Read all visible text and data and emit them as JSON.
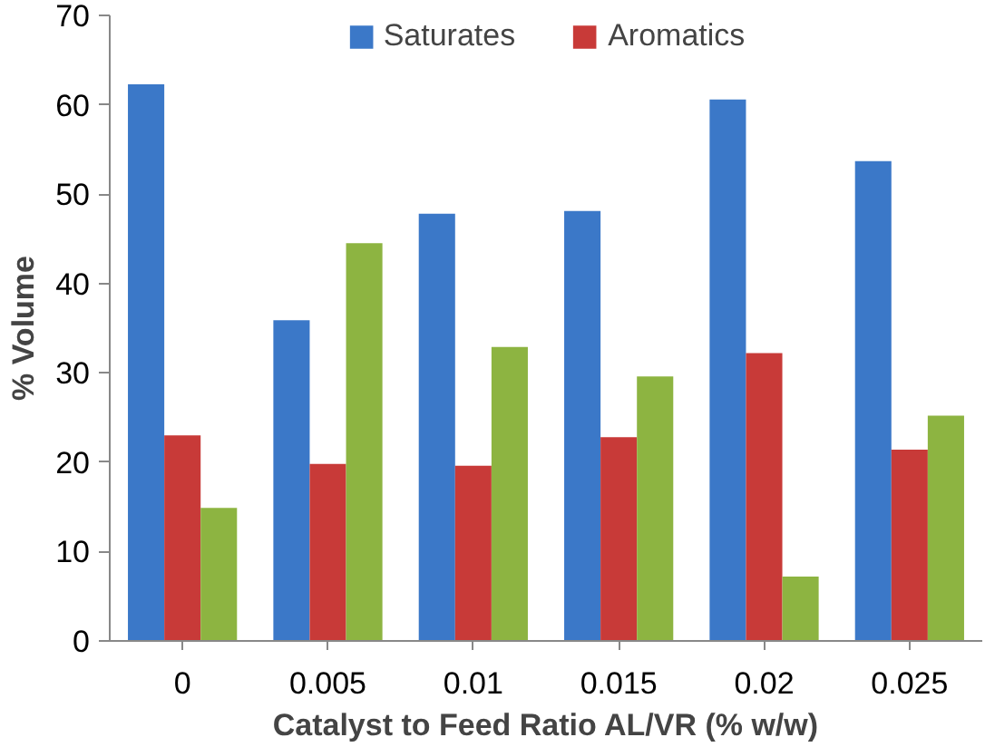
{
  "chart_data": {
    "type": "bar",
    "xlabel": "Catalyst to Feed Ratio AL/VR (% w/w)",
    "ylabel": "% Volume",
    "categories": [
      "0",
      "0.005",
      "0.01",
      "0.015",
      "0.02",
      "0.025"
    ],
    "series": [
      {
        "name": "Saturates",
        "color": "#3b78c8",
        "values": [
          62.3,
          35.9,
          47.8,
          48.1,
          60.6,
          53.7
        ]
      },
      {
        "name": "Aromatics",
        "color": "#c83a38",
        "values": [
          23.0,
          19.8,
          19.6,
          22.8,
          32.2,
          21.4
        ]
      },
      {
        "color": "#8db441",
        "values": [
          14.9,
          44.5,
          32.9,
          29.6,
          7.2,
          25.2
        ]
      }
    ],
    "ylim": [
      0,
      70
    ],
    "yticks": [
      0,
      10,
      20,
      30,
      40,
      50,
      60,
      70
    ],
    "grid": false,
    "legend": "top"
  }
}
